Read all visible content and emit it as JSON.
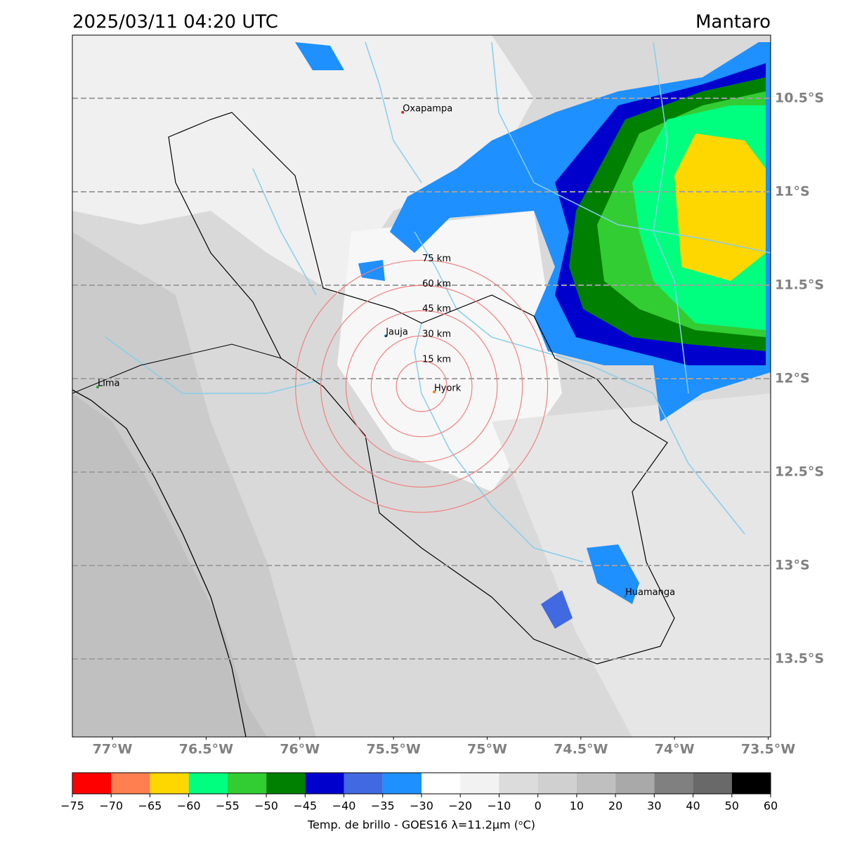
{
  "header": {
    "title": "2025/03/11 04:20 UTC",
    "region": "Mantaro"
  },
  "map": {
    "xlim": [
      -77.214,
      -73.487
    ],
    "ylim": [
      -13.917,
      -10.162
    ],
    "lon_ticks": [
      {
        "value": -77,
        "label": "77°W"
      },
      {
        "value": -76.5,
        "label": "76.5°W"
      },
      {
        "value": -76,
        "label": "76°W"
      },
      {
        "value": -75.5,
        "label": "75.5°W"
      },
      {
        "value": -75,
        "label": "75°W"
      },
      {
        "value": -74.5,
        "label": "74.5°W"
      },
      {
        "value": -74,
        "label": "74°W"
      },
      {
        "value": -73.5,
        "label": "73.5°W"
      }
    ],
    "lat_ticks": [
      {
        "value": -10.5,
        "label": "10.5°S"
      },
      {
        "value": -11,
        "label": "11°S"
      },
      {
        "value": -11.5,
        "label": "11.5°S"
      },
      {
        "value": -12,
        "label": "12°S"
      },
      {
        "value": -12.5,
        "label": "12.5°S"
      },
      {
        "value": -13,
        "label": "13°S"
      },
      {
        "value": -13.5,
        "label": "13.5°S"
      }
    ],
    "places": [
      {
        "name": "Oxapampa",
        "lon": -75.451,
        "lat": -10.575,
        "color": "#d62728"
      },
      {
        "name": "Lima",
        "lon": -77.079,
        "lat": -12.045,
        "color": "#2ca02c"
      },
      {
        "name": "Jauja",
        "lon": -75.541,
        "lat": -11.771,
        "color": "#1f77b4"
      },
      {
        "name": "Hyork",
        "lon": -75.283,
        "lat": -12.071,
        "color": "#ff7f0e"
      },
      {
        "name": "Huamanga",
        "lon": -74.263,
        "lat": -13.164,
        "color": "#1f77b4"
      }
    ],
    "rings": {
      "center_lon": -75.35,
      "center_lat": -12.041,
      "color": "#f08080",
      "items": [
        {
          "radius_km": 15,
          "label": "15 km"
        },
        {
          "radius_km": 30,
          "label": "30 km"
        },
        {
          "radius_km": 45,
          "label": "45 km"
        },
        {
          "radius_km": 60,
          "label": "60 km"
        },
        {
          "radius_km": 75,
          "label": "75 km"
        }
      ]
    }
  },
  "colorbar": {
    "label": "Temp. de brillo - GOES16 λ=11.2μm (ᵒC)",
    "bounds": [
      {
        "value": -75,
        "label": "−75"
      },
      {
        "value": -70,
        "label": "−70"
      },
      {
        "value": -65,
        "label": "−65"
      },
      {
        "value": -60,
        "label": "−60"
      },
      {
        "value": -55,
        "label": "−55"
      },
      {
        "value": -50,
        "label": "−50"
      },
      {
        "value": -45,
        "label": "−45"
      },
      {
        "value": -40,
        "label": "−40"
      },
      {
        "value": -35,
        "label": "−35"
      },
      {
        "value": -30,
        "label": "−30"
      },
      {
        "value": -20,
        "label": "−20"
      },
      {
        "value": -10,
        "label": "−10"
      },
      0,
      10,
      20,
      30,
      40,
      50,
      60
    ],
    "colors": [
      "#ff0000",
      "#ff7f50",
      "#ffd700",
      "#00ff7f",
      "#32cd32",
      "#008000",
      "#0000cd",
      "#4169e1",
      "#1e90ff",
      "#ffffff",
      "#f2f2f2",
      "#dcdcdc",
      "#d0d0d0",
      "#bfbfbf",
      "#a9a9a9",
      "#808080",
      "#696969",
      "#000000"
    ]
  }
}
